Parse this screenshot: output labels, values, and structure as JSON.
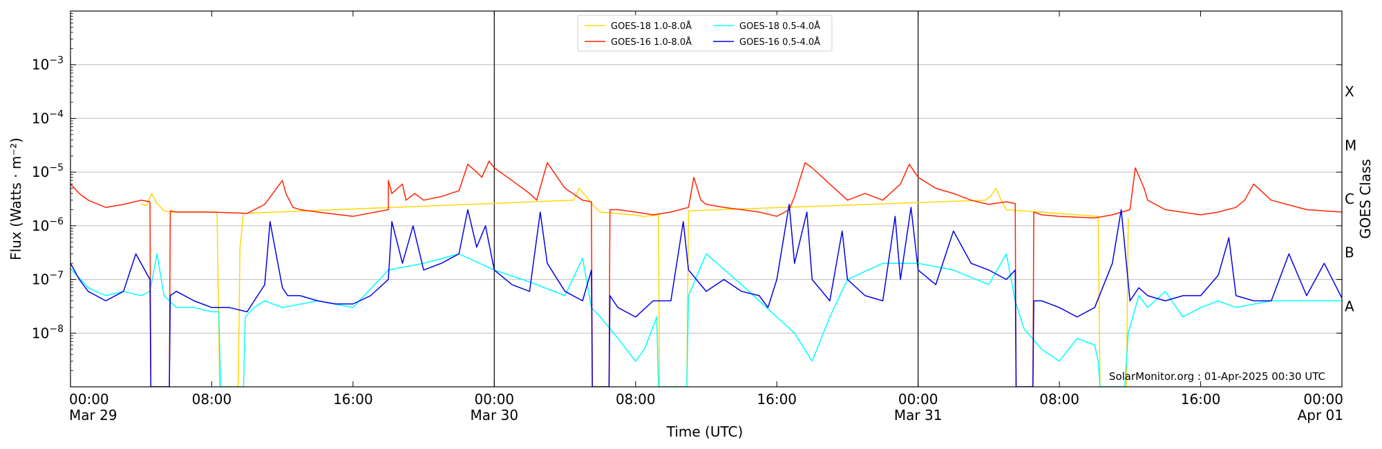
{
  "chart_data": {
    "type": "line",
    "title": "",
    "xlabel": "Time (UTC)",
    "ylabel": "Flux (Watts · m⁻²)",
    "ylabel_right": "GOES Class",
    "yscale": "log",
    "ylim": [
      1e-09,
      0.01
    ],
    "xlim": [
      0,
      72
    ],
    "x_unit": "hours since 2025-03-29 00:00 UTC",
    "x_ticks": [
      {
        "x": 0,
        "l1": "00:00",
        "l2": "Mar 29"
      },
      {
        "x": 8,
        "l1": "08:00",
        "l2": ""
      },
      {
        "x": 16,
        "l1": "16:00",
        "l2": ""
      },
      {
        "x": 24,
        "l1": "00:00",
        "l2": "Mar 30"
      },
      {
        "x": 32,
        "l1": "08:00",
        "l2": ""
      },
      {
        "x": 40,
        "l1": "16:00",
        "l2": ""
      },
      {
        "x": 48,
        "l1": "00:00",
        "l2": "Mar 31"
      },
      {
        "x": 56,
        "l1": "08:00",
        "l2": ""
      },
      {
        "x": 64,
        "l1": "16:00",
        "l2": ""
      },
      {
        "x": 72,
        "l1": "00:00",
        "l2": "Apr 01"
      }
    ],
    "y_ticks": [
      {
        "exp": -8,
        "base": "10",
        "sup": "−8"
      },
      {
        "exp": -7,
        "base": "10",
        "sup": "−7"
      },
      {
        "exp": -6,
        "base": "10",
        "sup": "−6"
      },
      {
        "exp": -5,
        "base": "10",
        "sup": "−5"
      },
      {
        "exp": -4,
        "base": "10",
        "sup": "−4"
      },
      {
        "exp": -3,
        "base": "10",
        "sup": "−3"
      }
    ],
    "goes_classes": [
      {
        "label": "A",
        "exp": -7.5
      },
      {
        "label": "B",
        "exp": -6.5
      },
      {
        "label": "C",
        "exp": -5.5
      },
      {
        "label": "M",
        "exp": -4.5
      },
      {
        "label": "X",
        "exp": -3.5
      }
    ],
    "day_boundaries": [
      24,
      48
    ],
    "legend": {
      "placement": "top-center",
      "entries": [
        {
          "label": "GOES-18 1.0-8.0Å",
          "color": "#ffd700"
        },
        {
          "label": "GOES-18 0.5-4.0Å",
          "color": "#00ffff"
        },
        {
          "label": "GOES-16 1.0-8.0Å",
          "color": "#ff2200"
        },
        {
          "label": "GOES-16 0.5-4.0Å",
          "color": "#0000e6"
        }
      ]
    },
    "credit": "SolarMonitor.org : 01-Apr-2025 00:30 UTC",
    "series": [
      {
        "name": "GOES-18 1.0-8.0Å",
        "color": "#ffd700",
        "x": [
          4.0,
          4.3,
          4.6,
          4.9,
          5.3,
          5.6,
          8.3,
          8.45,
          9.5,
          9.6,
          9.8,
          28.5,
          28.8,
          29.2,
          29.7,
          30.0,
          31.8,
          32.5,
          33.3,
          33.35,
          34.9,
          35.0,
          51.8,
          52.1,
          52.4,
          52.7,
          53.0,
          58.2,
          58.3,
          59.8,
          59.9
        ],
        "y": [
          2.5e-06,
          2.4e-06,
          4e-06,
          2.6e-06,
          1.9e-06,
          1.8e-06,
          1.8e-06,
          1e-09,
          1e-09,
          4e-07,
          1.7e-06,
          3e-06,
          5e-06,
          3.5e-06,
          2.2e-06,
          1.8e-06,
          1.6e-06,
          1.5e-06,
          1.6e-06,
          1e-09,
          1e-09,
          1.9e-06,
          3e-06,
          3.5e-06,
          5e-06,
          3e-06,
          2e-06,
          1.5e-06,
          1e-09,
          1e-09,
          1.4e-06
        ]
      },
      {
        "name": "GOES-18 0.5-4.0Å",
        "color": "#00ffff",
        "x": [
          0,
          1,
          2,
          3,
          4,
          4.5,
          4.9,
          5.3,
          6,
          7,
          8,
          8.4,
          8.5,
          9.8,
          9.9,
          10.4,
          11,
          12,
          14,
          16,
          18,
          20,
          22,
          24,
          26,
          28,
          29,
          29.5,
          30,
          31,
          32,
          32.5,
          33.2,
          33.3,
          34.9,
          35,
          36,
          38,
          40,
          41,
          42,
          43,
          44,
          46,
          48,
          50,
          52,
          53,
          53.5,
          54,
          55,
          56,
          57,
          58,
          58.2,
          58.3,
          59.7,
          59.9,
          60.5,
          61,
          62,
          63,
          64,
          65,
          66,
          68,
          70,
          72
        ],
        "y": [
          1.6e-07,
          7e-08,
          5e-08,
          6e-08,
          5e-08,
          6e-08,
          3e-07,
          5e-08,
          3e-08,
          3e-08,
          2.5e-08,
          2.5e-08,
          1e-09,
          1e-09,
          2e-08,
          3e-08,
          4e-08,
          3e-08,
          4e-08,
          3e-08,
          1.5e-07,
          2e-07,
          3e-07,
          1.5e-07,
          9e-08,
          5e-08,
          2.5e-07,
          3e-08,
          2e-08,
          8e-09,
          3e-09,
          5e-09,
          2e-08,
          1e-09,
          1e-09,
          5e-08,
          3e-07,
          8e-08,
          2e-08,
          1e-08,
          3e-09,
          2e-08,
          1e-07,
          2e-07,
          2e-07,
          1.5e-07,
          8e-08,
          3e-07,
          4e-08,
          1.2e-08,
          5e-09,
          3e-09,
          8e-09,
          6e-09,
          3e-09,
          1e-09,
          1e-09,
          1e-08,
          5e-08,
          3e-08,
          6e-08,
          2e-08,
          3e-08,
          4e-08,
          3e-08,
          4e-08,
          4e-08,
          4e-08
        ]
      },
      {
        "name": "GOES-16 1.0-8.0Å",
        "color": "#ff2200",
        "x": [
          0,
          0.5,
          1,
          2,
          3,
          4,
          4.5,
          4.55,
          5.6,
          5.65,
          6,
          8,
          10,
          11,
          12,
          12,
          12.2,
          12.6,
          13,
          14,
          16,
          18,
          18,
          18.2,
          18.8,
          19,
          19.5,
          20,
          21,
          22,
          22.5,
          23,
          23.3,
          23.7,
          24,
          25,
          26,
          26.4,
          27,
          28,
          29,
          29.5,
          29.55,
          30.5,
          30.55,
          31,
          32,
          33,
          34,
          35,
          35.3,
          35.7,
          36,
          37,
          38,
          39,
          40,
          40.7,
          41,
          41.6,
          42,
          43,
          44,
          45,
          46,
          47,
          47.5,
          48,
          49,
          50,
          51,
          52,
          53,
          53.5,
          53.55,
          54.5,
          54.55,
          55,
          56,
          58,
          59,
          60,
          60.3,
          60.8,
          61,
          62,
          64,
          65,
          66,
          66.5,
          67,
          68,
          70,
          72
        ],
        "y": [
          6e-06,
          4e-06,
          3e-06,
          2.2e-06,
          2.5e-06,
          3e-06,
          2.8e-06,
          1e-09,
          1e-09,
          1.9e-06,
          1.8e-06,
          1.8e-06,
          1.7e-06,
          2.5e-06,
          7e-06,
          7e-06,
          4e-06,
          2.2e-06,
          2e-06,
          1.8e-06,
          1.5e-06,
          2e-06,
          7e-06,
          4e-06,
          6e-06,
          3e-06,
          4e-06,
          3e-06,
          3.5e-06,
          4.5e-06,
          1.4e-05,
          1e-05,
          8e-06,
          1.6e-05,
          1.2e-05,
          7e-06,
          4e-06,
          3e-06,
          1.5e-05,
          5e-06,
          3e-06,
          2.8e-06,
          1e-09,
          1e-09,
          2e-06,
          2e-06,
          1.8e-06,
          1.6e-06,
          1.8e-06,
          2.2e-06,
          8e-06,
          3e-06,
          2.5e-06,
          2.2e-06,
          2e-06,
          1.8e-06,
          1.5e-06,
          2e-06,
          3.5e-06,
          1.5e-05,
          1.2e-05,
          6e-06,
          3e-06,
          4e-06,
          3e-06,
          6e-06,
          1.4e-05,
          8e-06,
          5e-06,
          4e-06,
          3e-06,
          2.5e-06,
          2.8e-06,
          2.6e-06,
          1e-09,
          1e-09,
          1.8e-06,
          1.6e-06,
          1.5e-06,
          1.4e-06,
          1.6e-06,
          2e-06,
          1.2e-05,
          5e-06,
          3e-06,
          2e-06,
          1.6e-06,
          1.8e-06,
          2.2e-06,
          3e-06,
          6e-06,
          3e-06,
          2e-06,
          1.8e-06
        ]
      },
      {
        "name": "GOES-16 0.5-4.0Å",
        "color": "#0000e6",
        "x": [
          0,
          0.5,
          1,
          2,
          3,
          3.7,
          4,
          4.5,
          4.55,
          5.6,
          5.65,
          6,
          7,
          8,
          9,
          10,
          11,
          11.3,
          12,
          12.3,
          13,
          14,
          15,
          16,
          17,
          18,
          18.2,
          18.8,
          19.4,
          20,
          21,
          22,
          22.5,
          23,
          23.5,
          24,
          25,
          26,
          26.6,
          27,
          28,
          29,
          29.5,
          29.55,
          30.5,
          30.55,
          31,
          32,
          33,
          34,
          34.7,
          35,
          36,
          37,
          38,
          39,
          39.5,
          40,
          40.7,
          41,
          41.7,
          42,
          43,
          43.7,
          44,
          45,
          46,
          46.7,
          47,
          47.6,
          48,
          49,
          50,
          51,
          52,
          53,
          53.5,
          53.55,
          54.5,
          54.55,
          55,
          56,
          57,
          58,
          59,
          59.5,
          60,
          60.5,
          61,
          62,
          63,
          64,
          65,
          65.6,
          66,
          67,
          68,
          69,
          70,
          71,
          72
        ],
        "y": [
          2e-07,
          1e-07,
          6e-08,
          4e-08,
          6e-08,
          3e-07,
          2e-07,
          1e-07,
          1e-09,
          1e-09,
          5e-08,
          6e-08,
          4e-08,
          3e-08,
          3e-08,
          2.5e-08,
          8e-08,
          1.2e-06,
          7e-08,
          5e-08,
          5e-08,
          4e-08,
          3.5e-08,
          3.5e-08,
          5e-08,
          1e-07,
          1.2e-06,
          2e-07,
          1e-06,
          1.5e-07,
          2e-07,
          3e-07,
          2e-06,
          4e-07,
          1e-06,
          1.5e-07,
          8e-08,
          6e-08,
          1.8e-06,
          2e-07,
          6e-08,
          4e-08,
          1.5e-07,
          1e-09,
          1e-09,
          5e-08,
          3e-08,
          2e-08,
          4e-08,
          4e-08,
          1.2e-06,
          1.5e-07,
          6e-08,
          1e-07,
          6e-08,
          5e-08,
          3e-08,
          1e-07,
          2.5e-06,
          2e-07,
          1.8e-06,
          1e-07,
          4e-08,
          8e-07,
          1e-07,
          5e-08,
          4e-08,
          1.5e-06,
          1e-07,
          2.2e-06,
          1.5e-07,
          8e-08,
          8e-07,
          2e-07,
          1.5e-07,
          1e-07,
          1.5e-07,
          1e-09,
          1e-09,
          4e-08,
          4e-08,
          3e-08,
          2e-08,
          3e-08,
          2e-07,
          2e-06,
          4e-08,
          7e-08,
          5e-08,
          4e-08,
          5e-08,
          5e-08,
          1.2e-07,
          6e-07,
          5e-08,
          4e-08,
          4e-08,
          3e-07,
          5e-08,
          2e-07,
          4.5e-08
        ]
      }
    ]
  }
}
